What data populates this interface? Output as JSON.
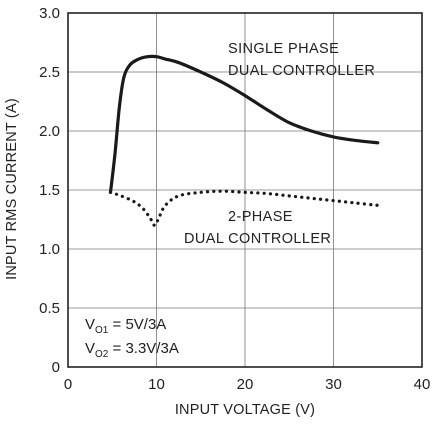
{
  "chart_data": {
    "type": "line",
    "xlabel": "INPUT VOLTAGE (V)",
    "ylabel": "INPUT RMS CURRENT (A)",
    "xlim": [
      0,
      40
    ],
    "ylim": [
      0,
      3.0
    ],
    "x_ticks": [
      "0",
      "10",
      "20",
      "30",
      "40"
    ],
    "y_ticks": [
      "0",
      "0.5",
      "1.0",
      "1.5",
      "2.0",
      "2.5",
      "3.0"
    ],
    "grid": true,
    "series": [
      {
        "name_lines": [
          "SINGLE PHASE",
          "DUAL CONTROLLER"
        ],
        "style": "solid",
        "color": "#1a1a1a",
        "points": [
          [
            4.8,
            1.48
          ],
          [
            5.3,
            1.8
          ],
          [
            5.8,
            2.2
          ],
          [
            6.3,
            2.45
          ],
          [
            7.0,
            2.56
          ],
          [
            8.0,
            2.61
          ],
          [
            9.0,
            2.63
          ],
          [
            10.0,
            2.63
          ],
          [
            11.0,
            2.61
          ],
          [
            12.5,
            2.58
          ],
          [
            15.0,
            2.5
          ],
          [
            17.5,
            2.41
          ],
          [
            20.0,
            2.3
          ],
          [
            22.5,
            2.18
          ],
          [
            25.0,
            2.07
          ],
          [
            27.5,
            2.0
          ],
          [
            30.0,
            1.95
          ],
          [
            32.5,
            1.92
          ],
          [
            35.0,
            1.9
          ]
        ]
      },
      {
        "name_lines": [
          "2-PHASE",
          "DUAL CONTROLLER"
        ],
        "style": "dotted",
        "color": "#1a1a1a",
        "points": [
          [
            4.8,
            1.48
          ],
          [
            6.0,
            1.45
          ],
          [
            7.5,
            1.4
          ],
          [
            8.5,
            1.34
          ],
          [
            9.3,
            1.26
          ],
          [
            9.8,
            1.2
          ],
          [
            10.3,
            1.27
          ],
          [
            11.0,
            1.37
          ],
          [
            12.5,
            1.45
          ],
          [
            15.0,
            1.48
          ],
          [
            17.5,
            1.49
          ],
          [
            20.0,
            1.48
          ],
          [
            22.5,
            1.47
          ],
          [
            25.0,
            1.45
          ],
          [
            27.5,
            1.43
          ],
          [
            30.0,
            1.41
          ],
          [
            32.5,
            1.39
          ],
          [
            35.0,
            1.37
          ]
        ]
      }
    ],
    "annotation": {
      "line1_main": "V",
      "line1_sub": "O1",
      "line1_rest": " = 5V/3A",
      "line2_main": "V",
      "line2_sub": "O2",
      "line2_rest": " = 3.3V/3A"
    }
  }
}
